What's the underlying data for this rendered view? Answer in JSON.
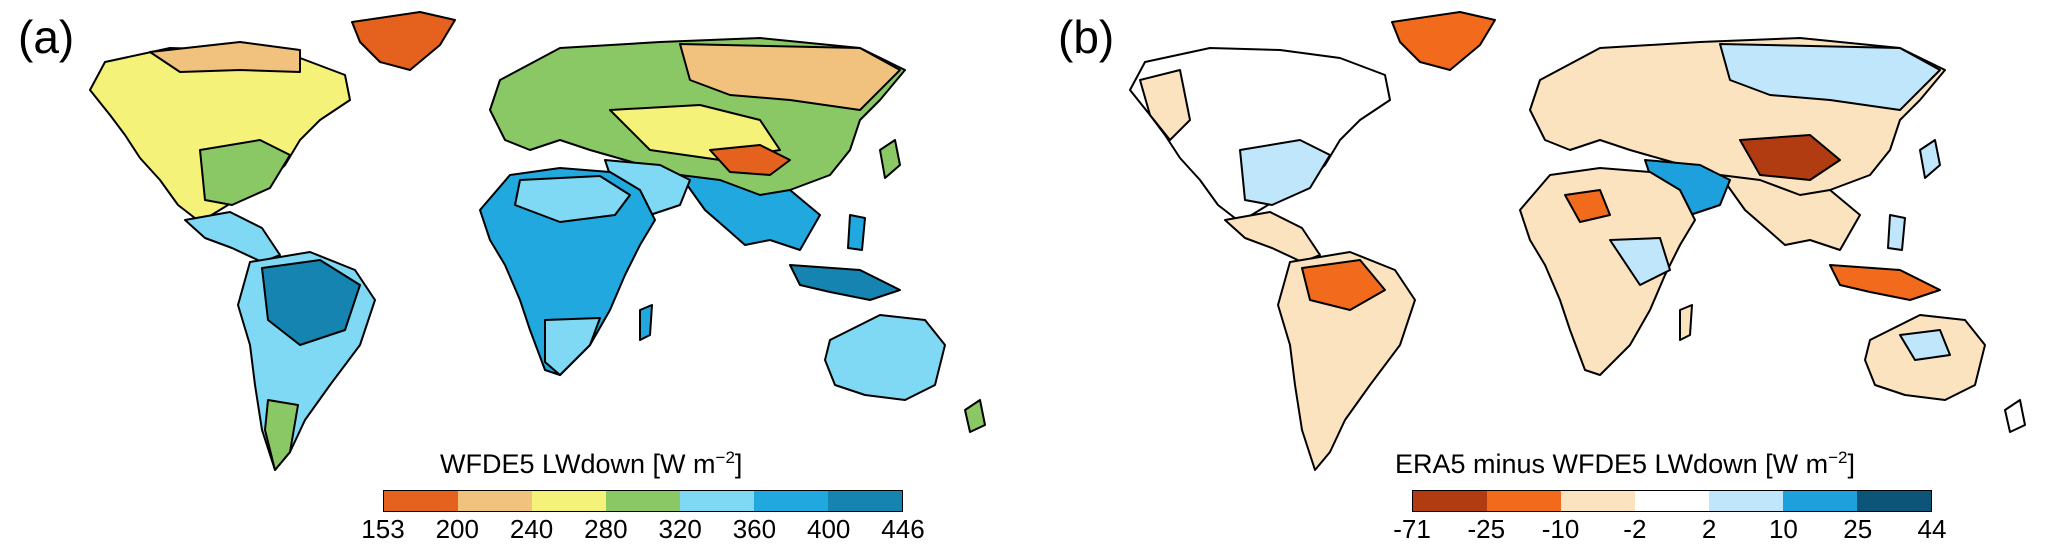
{
  "panels": [
    {
      "letter": "(a)",
      "colorbar": {
        "title": "WFDE5 LWdown [W m",
        "unit_exp": "−2",
        "title_close": "]",
        "ticks": [
          "153",
          "200",
          "240",
          "280",
          "320",
          "360",
          "400",
          "446"
        ],
        "colors": [
          "#e4611e",
          "#f1c27d",
          "#f5f27a",
          "#8ac765",
          "#7fd8f4",
          "#21a8df",
          "#1584b0"
        ]
      }
    },
    {
      "letter": "(b)",
      "colorbar": {
        "title": "ERA5 minus WFDE5 LWdown [W m",
        "unit_exp": "−2",
        "title_close": "]",
        "ticks": [
          "-71",
          "-25",
          "-10",
          "-2",
          "2",
          "10",
          "25",
          "44"
        ],
        "colors": [
          "#b23c12",
          "#f26b1d",
          "#fbe3bf",
          "#ffffff",
          "#bfe6fa",
          "#1ea0dc",
          "#0c5478"
        ]
      }
    }
  ]
}
